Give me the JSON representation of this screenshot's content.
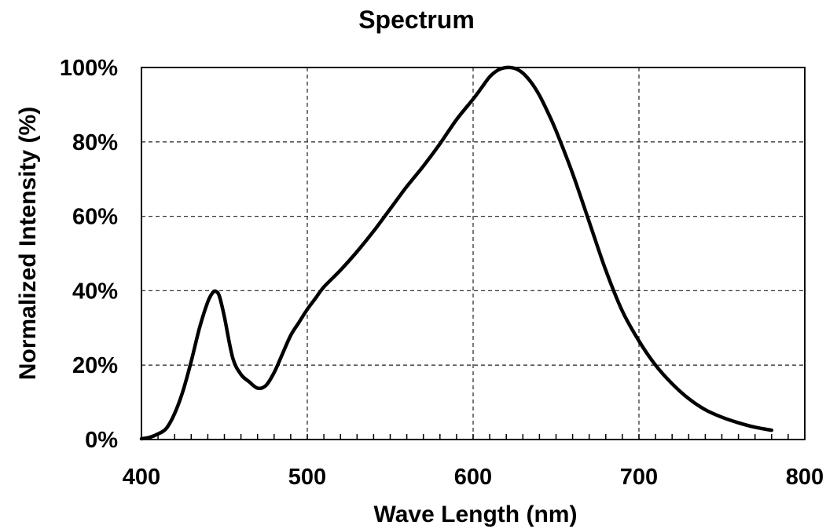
{
  "chart_data": {
    "type": "line",
    "title": "Spectrum",
    "xlabel": "Wave Length (nm)",
    "ylabel": "Normalized Intensity (%)",
    "xlim": [
      400,
      800
    ],
    "ylim": [
      0,
      100
    ],
    "x_ticks": [
      400,
      500,
      600,
      700,
      800
    ],
    "x_tick_labels": [
      "400",
      "500",
      "600",
      "700",
      "800"
    ],
    "y_ticks": [
      0,
      20,
      40,
      60,
      80,
      100
    ],
    "y_tick_labels": [
      "0%",
      "20%",
      "40%",
      "60%",
      "80%",
      "100%"
    ],
    "grid": true,
    "x_minor_tick_step": 10,
    "series": [
      {
        "color": "#000000",
        "x": [
          400,
          405,
          410,
          415,
          420,
          425,
          430,
          435,
          440,
          443,
          445,
          447,
          450,
          455,
          460,
          465,
          470,
          475,
          480,
          485,
          490,
          495,
          500,
          505,
          510,
          520,
          530,
          540,
          550,
          560,
          570,
          580,
          590,
          600,
          605,
          610,
          615,
          620,
          625,
          630,
          635,
          640,
          645,
          650,
          660,
          670,
          680,
          690,
          700,
          710,
          720,
          730,
          740,
          750,
          760,
          770,
          780
        ],
        "y": [
          0.2,
          0.6,
          1.5,
          3,
          7,
          13,
          21,
          30,
          37,
          39.5,
          39.8,
          38.5,
          33,
          22,
          17.5,
          15.5,
          13.8,
          14.5,
          18,
          23,
          28,
          31.5,
          35,
          38,
          41,
          45.5,
          50.5,
          56,
          62,
          68,
          73.5,
          79.5,
          86,
          91.5,
          94.5,
          97.5,
          99.3,
          100,
          99.8,
          98.5,
          96,
          92.5,
          88,
          83,
          71.5,
          58.5,
          45.5,
          34.5,
          26.5,
          20,
          15,
          11,
          8,
          6,
          4.5,
          3.3,
          2.5
        ]
      }
    ]
  }
}
